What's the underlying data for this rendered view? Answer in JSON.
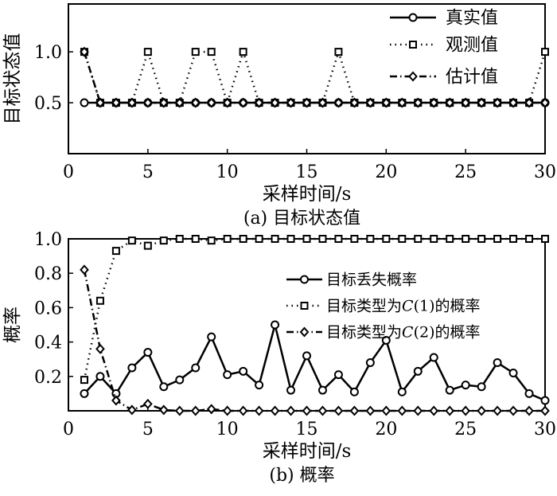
{
  "chart_data": [
    {
      "type": "line",
      "caption": "(a) 目标状态值",
      "xlabel": "采样时间/s",
      "ylabel": "目标状态值",
      "xlim": [
        0,
        30
      ],
      "ylim": [
        0,
        1.47
      ],
      "xticks": [
        0,
        5,
        10,
        15,
        20,
        25,
        30
      ],
      "yticks": [
        0.5,
        1.0
      ],
      "ytick_labels": [
        "0.5",
        "1.0"
      ],
      "grid": false,
      "legend_position": "top-right",
      "x": [
        1,
        2,
        3,
        4,
        5,
        6,
        7,
        8,
        9,
        10,
        11,
        12,
        13,
        14,
        15,
        16,
        17,
        18,
        19,
        20,
        21,
        22,
        23,
        24,
        25,
        26,
        27,
        28,
        29,
        30
      ],
      "series": [
        {
          "name": "真实值",
          "style": "solid",
          "marker": "circle",
          "values": [
            0.5,
            0.5,
            0.5,
            0.5,
            0.5,
            0.5,
            0.5,
            0.5,
            0.5,
            0.5,
            0.5,
            0.5,
            0.5,
            0.5,
            0.5,
            0.5,
            0.5,
            0.5,
            0.5,
            0.5,
            0.5,
            0.5,
            0.5,
            0.5,
            0.5,
            0.5,
            0.5,
            0.5,
            0.5,
            0.5
          ]
        },
        {
          "name": "观测值",
          "style": "dotted",
          "marker": "square",
          "values": [
            1.0,
            0.5,
            0.5,
            0.5,
            1.0,
            0.5,
            0.5,
            1.0,
            1.0,
            0.5,
            1.0,
            0.5,
            0.5,
            0.5,
            0.5,
            0.5,
            1.0,
            0.5,
            0.5,
            0.5,
            0.5,
            0.5,
            0.5,
            0.5,
            0.5,
            0.5,
            0.5,
            0.5,
            0.5,
            1.0
          ]
        },
        {
          "name": "估计值",
          "style": "dashdot",
          "marker": "diamond",
          "values": [
            1.0,
            0.5,
            0.5,
            0.5,
            0.5,
            0.5,
            0.5,
            0.5,
            0.5,
            0.5,
            0.5,
            0.5,
            0.5,
            0.5,
            0.5,
            0.5,
            0.5,
            0.5,
            0.5,
            0.5,
            0.5,
            0.5,
            0.5,
            0.5,
            0.5,
            0.5,
            0.5,
            0.5,
            0.5,
            0.5
          ]
        }
      ]
    },
    {
      "type": "line",
      "caption": "(b) 概率",
      "xlabel": "采样时间/s",
      "ylabel": "概率",
      "xlim": [
        0,
        30
      ],
      "ylim": [
        0,
        1.0
      ],
      "xticks": [
        0,
        5,
        10,
        15,
        20,
        25,
        30
      ],
      "yticks": [
        0.2,
        0.4,
        0.6,
        0.8,
        1.0
      ],
      "ytick_labels": [
        "0.2",
        "0.4",
        "0.6",
        "0.8",
        "1.0"
      ],
      "grid": false,
      "legend_position": "upper-right",
      "x": [
        1,
        2,
        3,
        4,
        5,
        6,
        7,
        8,
        9,
        10,
        11,
        12,
        13,
        14,
        15,
        16,
        17,
        18,
        19,
        20,
        21,
        22,
        23,
        24,
        25,
        26,
        27,
        28,
        29,
        30
      ],
      "series": [
        {
          "name": "目标丢失概率",
          "style": "solid",
          "marker": "circle",
          "values": [
            0.1,
            0.2,
            0.1,
            0.25,
            0.34,
            0.14,
            0.18,
            0.25,
            0.43,
            0.21,
            0.23,
            0.15,
            0.5,
            0.12,
            0.32,
            0.12,
            0.21,
            0.11,
            0.28,
            0.41,
            0.11,
            0.23,
            0.31,
            0.12,
            0.15,
            0.14,
            0.28,
            0.22,
            0.1,
            0.06
          ]
        },
        {
          "name_prefix": "目标类型为",
          "name_var": "C",
          "name_suffix": "(1)的概率",
          "style": "dotted",
          "marker": "square",
          "values": [
            0.18,
            0.64,
            0.93,
            0.99,
            0.96,
            0.99,
            1.0,
            1.0,
            0.99,
            1.0,
            1.0,
            1.0,
            1.0,
            1.0,
            1.0,
            1.0,
            1.0,
            1.0,
            1.0,
            1.0,
            1.0,
            1.0,
            1.0,
            1.0,
            1.0,
            1.0,
            1.0,
            1.0,
            1.0,
            1.0
          ]
        },
        {
          "name_prefix": "目标类型为",
          "name_var": "C",
          "name_suffix": "(2)的概率",
          "style": "dashdot",
          "marker": "diamond",
          "values": [
            0.82,
            0.36,
            0.06,
            0.005,
            0.04,
            0.005,
            0.0,
            0.0,
            0.01,
            0.0,
            0.0,
            0.0,
            0.0,
            0.0,
            0.0,
            0.0,
            0.0,
            0.0,
            0.0,
            0.0,
            0.0,
            0.0,
            0.0,
            0.0,
            0.0,
            0.0,
            0.0,
            0.0,
            0.0,
            0.0
          ]
        }
      ]
    }
  ]
}
